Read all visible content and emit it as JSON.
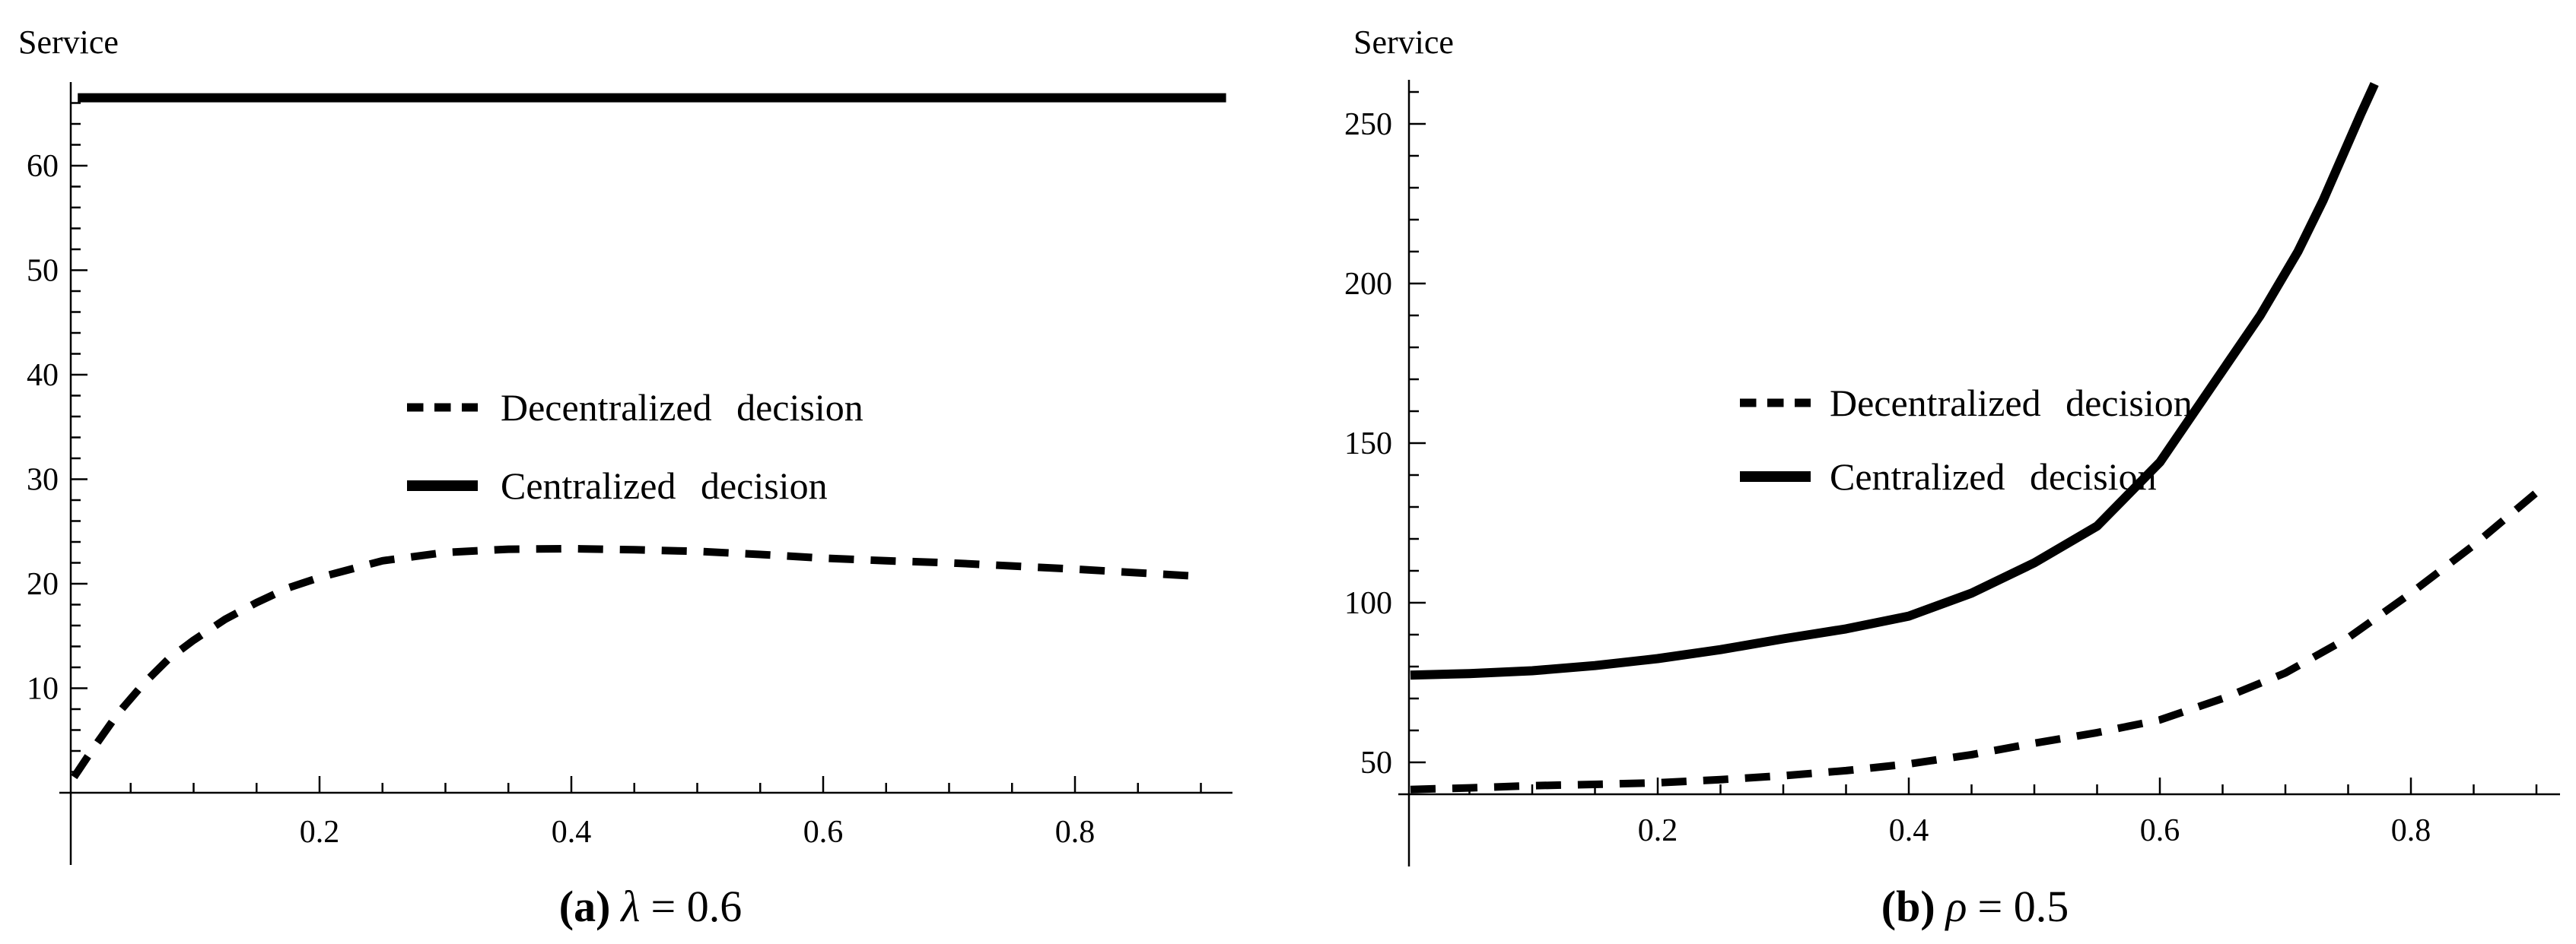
{
  "figure": {
    "background": "#ffffff",
    "ink": "#000000"
  },
  "chart_data": [
    {
      "type": "line",
      "panel": "a",
      "caption": {
        "text": "(a) λ = 0.6",
        "prefix": "(a)",
        "symbol": "λ",
        "suffix": "= 0.6"
      },
      "ylabel": "Service",
      "xlabel": "",
      "xlim": [
        0,
        0.92
      ],
      "ylim": [
        0,
        68
      ],
      "xticks": [
        0.2,
        0.4,
        0.6,
        0.8
      ],
      "yticks": [
        10,
        20,
        30,
        40,
        50,
        60
      ],
      "x_minor_step": 0.05,
      "y_minor_step": 2,
      "grid": false,
      "legend_position": "upper-right-inside",
      "legend": [
        "Decentralized decision",
        "Centralized decision"
      ],
      "series": [
        {
          "name": "Decentralized decision",
          "style": "dashed",
          "points": [
            [
              0.005,
              1.5
            ],
            [
              0.02,
              4.2
            ],
            [
              0.04,
              7.6
            ],
            [
              0.06,
              10.4
            ],
            [
              0.08,
              12.8
            ],
            [
              0.1,
              14.6
            ],
            [
              0.125,
              16.6
            ],
            [
              0.15,
              18.2
            ],
            [
              0.175,
              19.6
            ],
            [
              0.2,
              20.6
            ],
            [
              0.25,
              22.2
            ],
            [
              0.3,
              23.0
            ],
            [
              0.35,
              23.3
            ],
            [
              0.4,
              23.35
            ],
            [
              0.45,
              23.25
            ],
            [
              0.5,
              23.1
            ],
            [
              0.55,
              22.8
            ],
            [
              0.6,
              22.45
            ],
            [
              0.65,
              22.2
            ],
            [
              0.7,
              22.0
            ],
            [
              0.75,
              21.7
            ],
            [
              0.8,
              21.4
            ],
            [
              0.85,
              21.05
            ],
            [
              0.9,
              20.7
            ]
          ]
        },
        {
          "name": "Centralized decision",
          "style": "solid",
          "points": [
            [
              0.008,
              66.5
            ],
            [
              0.92,
              66.5
            ]
          ]
        }
      ]
    },
    {
      "type": "line",
      "panel": "b",
      "caption": {
        "text": "(b) ρ = 0.5",
        "prefix": "(b)",
        "symbol": "ρ",
        "suffix": "= 0.5"
      },
      "ylabel": "Service",
      "xlabel": "",
      "xlim": [
        0,
        0.92
      ],
      "ylim": [
        40,
        268
      ],
      "xticks": [
        0.2,
        0.4,
        0.6,
        0.8
      ],
      "yticks": [
        50,
        100,
        150,
        200,
        250
      ],
      "x_minor_step": 0.05,
      "y_minor_step": 10,
      "grid": false,
      "legend_position": "upper-right-inside",
      "legend": [
        "Decentralized decision",
        "Centralized decision"
      ],
      "series": [
        {
          "name": "Decentralized decision",
          "style": "dashed",
          "points": [
            [
              0.003,
              41.5
            ],
            [
              0.05,
              42.0
            ],
            [
              0.1,
              42.7
            ],
            [
              0.15,
              43.1
            ],
            [
              0.2,
              43.6
            ],
            [
              0.25,
              44.6
            ],
            [
              0.3,
              45.8
            ],
            [
              0.35,
              47.4
            ],
            [
              0.4,
              49.5
            ],
            [
              0.45,
              52.4
            ],
            [
              0.5,
              56.0
            ],
            [
              0.55,
              59.3
            ],
            [
              0.6,
              63.3
            ],
            [
              0.65,
              70.0
            ],
            [
              0.7,
              78.0
            ],
            [
              0.75,
              89.0
            ],
            [
              0.8,
              103.0
            ],
            [
              0.85,
              118.0
            ],
            [
              0.9,
              134.5
            ]
          ]
        },
        {
          "name": "Centralized decision",
          "style": "solid",
          "points": [
            [
              0.003,
              77.3
            ],
            [
              0.05,
              77.8
            ],
            [
              0.1,
              78.7
            ],
            [
              0.15,
              80.3
            ],
            [
              0.2,
              82.5
            ],
            [
              0.25,
              85.3
            ],
            [
              0.3,
              88.7
            ],
            [
              0.35,
              91.8
            ],
            [
              0.4,
              95.8
            ],
            [
              0.45,
              103.0
            ],
            [
              0.5,
              112.5
            ],
            [
              0.55,
              124.0
            ],
            [
              0.6,
              144.0
            ],
            [
              0.64,
              167.0
            ],
            [
              0.68,
              190.0
            ],
            [
              0.71,
              210.0
            ],
            [
              0.73,
              226.0
            ],
            [
              0.75,
              244.0
            ],
            [
              0.76,
              253.0
            ],
            [
              0.771,
              262.5
            ]
          ]
        }
      ]
    }
  ]
}
